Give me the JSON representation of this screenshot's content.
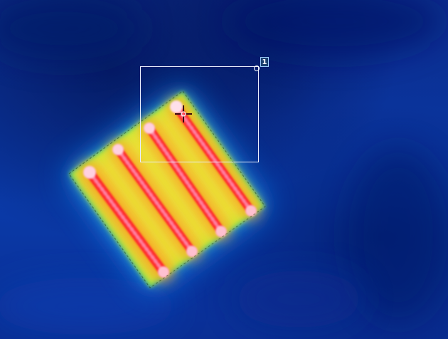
{
  "image": {
    "subject": "thermal-heating-panel",
    "palette": {
      "cold": "#0a2f95",
      "cool": "#1c8cf0",
      "mid": "#6de06a",
      "warm": "#f2e22a",
      "hot": "#ff3030",
      "peak": "#ffd0e0"
    }
  },
  "roi": {
    "label": "1"
  }
}
